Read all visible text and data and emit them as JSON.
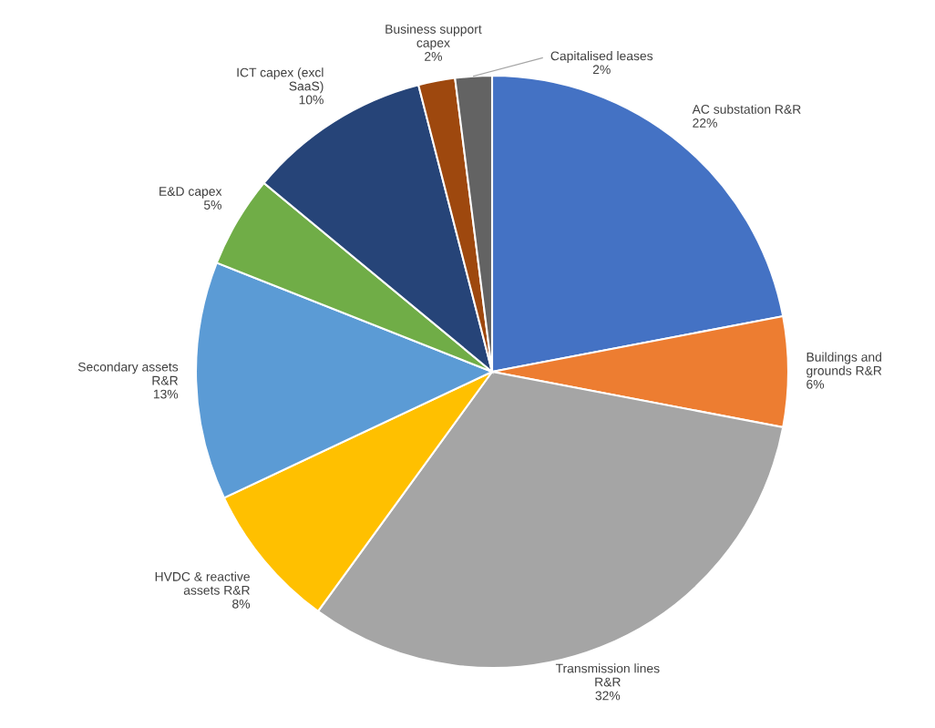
{
  "chart_data": {
    "type": "pie",
    "categories": [
      "AC substation R&R",
      "Buildings and\ngrounds R&R",
      "Transmission lines\nR&R",
      "HVDC & reactive\nassets R&R",
      "Secondary assets\nR&R",
      "E&D capex",
      "ICT capex (excl\nSaaS)",
      "Business support\ncapex",
      "Capitalised leases"
    ],
    "values": [
      22,
      6,
      32,
      8,
      13,
      5,
      10,
      2,
      2
    ],
    "value_labels": [
      "22%",
      "6%",
      "32%",
      "8%",
      "13%",
      "5%",
      "10%",
      "2%",
      "2%"
    ],
    "colors": [
      "#4472c4",
      "#ed7d31",
      "#a5a5a5",
      "#ffc000",
      "#5b9bd5",
      "#70ad47",
      "#264478",
      "#9e480e",
      "#636363"
    ],
    "legend": false
  }
}
